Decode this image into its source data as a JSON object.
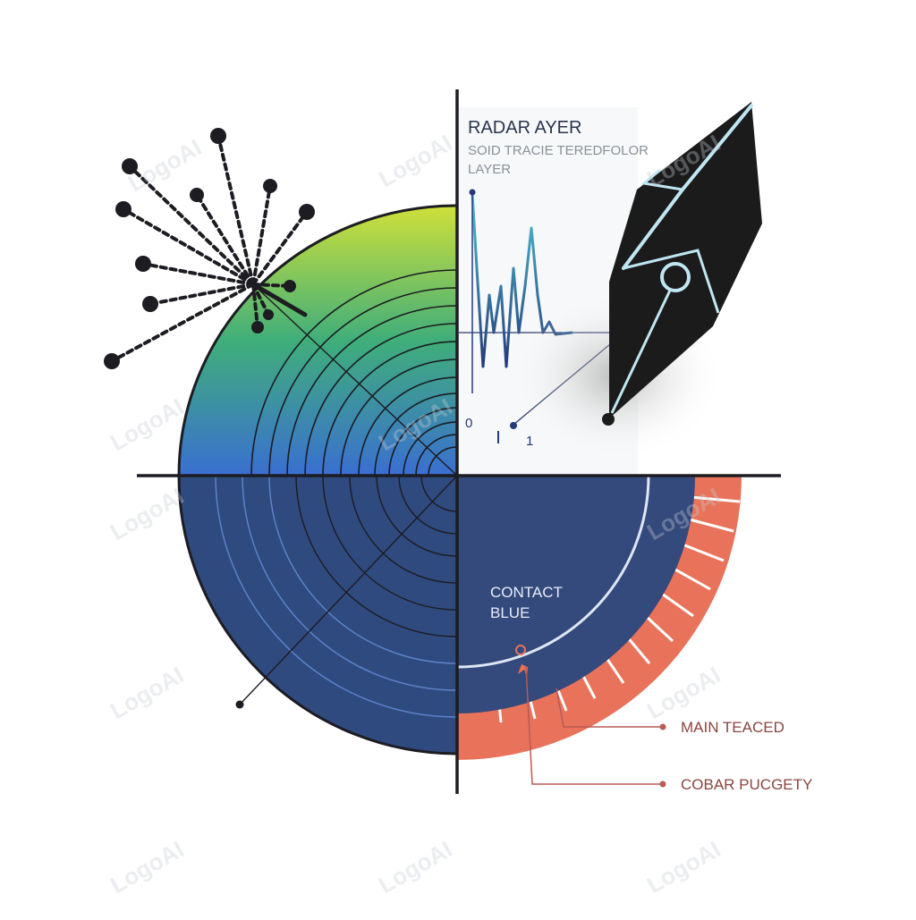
{
  "labels": {
    "radar_title": "RADAR AYER",
    "radar_subtitle_1": "SOID TRACIE TEREDFOLOR",
    "radar_subtitle_2": "LAYER",
    "contact_line_1": "CONTACT",
    "contact_line_2": "BLUE",
    "callout_main": "MAIN TEACED",
    "callout_cobar": "COBAR PUCGETY",
    "trace_tick_0": "0",
    "trace_tick_1": "1"
  },
  "watermark": "LogoAI",
  "icons": {
    "pen": "pen-nib-icon",
    "burst": "dotted-burst-icon"
  },
  "colors": {
    "axis": "#1c1c22",
    "gradient_top": "#cfe03a",
    "gradient_mid": "#3fae7a",
    "gradient_bottom": "#3a6fd1",
    "radar_navy": "#2f4a7e",
    "contact_navy": "#34497c",
    "ring_blue": "#5b82c9",
    "band_coral": "#e8735a",
    "callout_line": "#b85a55",
    "pen_black": "#1b1b1b",
    "pen_highlight": "#bfe6f2",
    "trace_teal": "#36b0c8",
    "trace_navy": "#243a7a"
  }
}
